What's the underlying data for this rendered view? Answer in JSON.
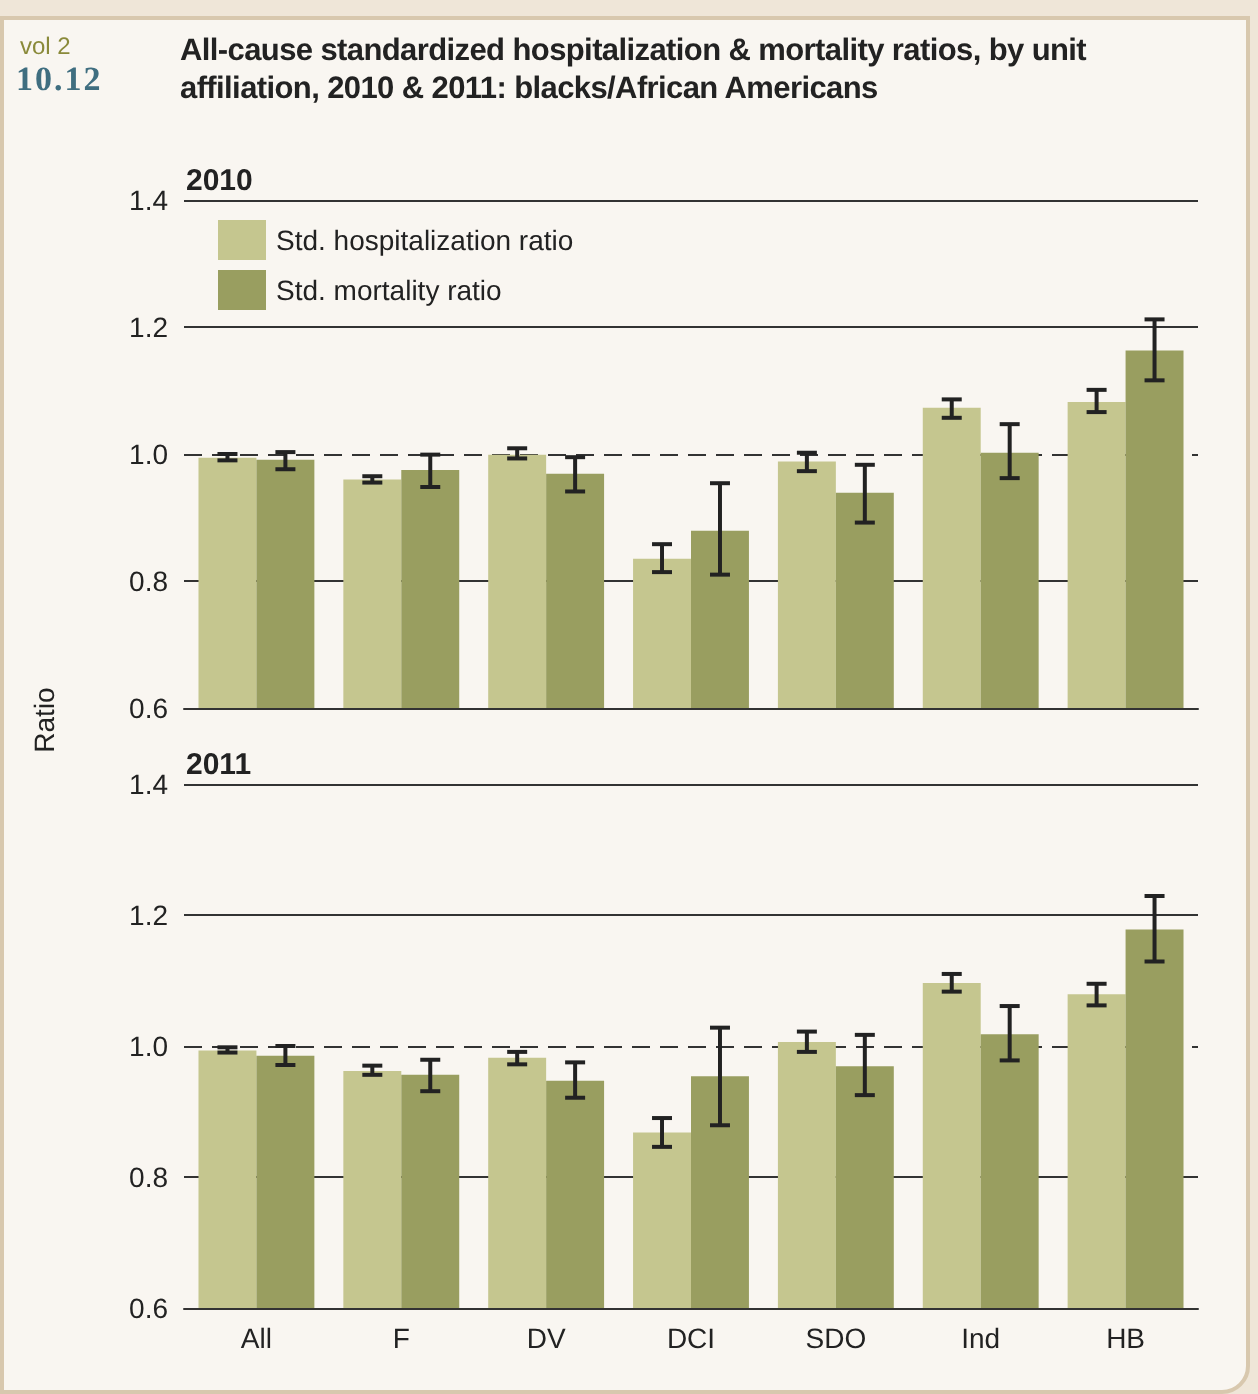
{
  "chart_data": [
    {
      "type": "bar",
      "title": "2010",
      "ylabel": "Ratio",
      "categories": [
        null,
        null,
        null,
        null,
        null,
        null,
        null
      ],
      "series": [
        {
          "name": "Std. hospitalization ratio",
          "color": "#c5c68f",
          "values": [
            0.994,
            0.96,
            0.999,
            0.835,
            0.988,
            1.073,
            1.082
          ],
          "errors": [
            [
              0.99,
              1.0
            ],
            [
              0.955,
              0.965
            ],
            [
              0.993,
              1.009
            ],
            [
              0.814,
              0.858
            ],
            [
              0.973,
              1.002
            ],
            [
              1.057,
              1.086
            ],
            [
              1.066,
              1.101
            ]
          ]
        },
        {
          "name": "Std. mortality ratio",
          "color": "#999e60",
          "values": [
            0.991,
            0.975,
            0.969,
            0.879,
            0.939,
            1.002,
            1.163
          ],
          "errors": [
            [
              0.976,
              1.003
            ],
            [
              0.948,
              0.999
            ],
            [
              0.941,
              0.995
            ],
            [
              0.81,
              0.954
            ],
            [
              0.892,
              0.983
            ],
            [
              0.962,
              1.047
            ],
            [
              1.116,
              1.212
            ]
          ]
        }
      ],
      "ylim": [
        0.6,
        1.4
      ],
      "yticks": [
        0.6,
        0.8,
        {
          "value": 1,
          "label": "1.0"
        },
        1.2,
        1.4
      ],
      "grid": "y",
      "legend": "top left",
      "tick_labels": "y",
      "ref_lines": [
        {
          "axis": "y",
          "value": 1.0,
          "line_style": "dashed"
        }
      ],
      "annotations": [
        "vol 2",
        "10.12",
        "All-cause standardized hospitalization & mortality ratios, by unit affiliation, 2010 & 2011: blacks/African Americans"
      ]
    },
    {
      "type": "bar",
      "title": "2011",
      "categories": [
        "All",
        "F",
        "DV",
        "DCI",
        "SDO",
        "Ind",
        "HB"
      ],
      "series": [
        {
          "color": "#c5c68f",
          "values": [
            0.993,
            0.962,
            0.982,
            0.868,
            1.006,
            1.096,
            1.079
          ],
          "errors": [
            [
              0.99,
              0.998
            ],
            [
              0.956,
              0.97
            ],
            [
              0.972,
              0.991
            ],
            [
              0.846,
              0.89
            ],
            [
              0.991,
              1.022
            ],
            [
              1.083,
              1.11
            ],
            [
              1.062,
              1.095
            ]
          ]
        },
        {
          "color": "#999e60",
          "values": [
            0.985,
            0.956,
            0.947,
            0.954,
            0.969,
            1.018,
            1.178
          ],
          "errors": [
            [
              0.971,
              1.0
            ],
            [
              0.931,
              0.979
            ],
            [
              0.921,
              0.975
            ],
            [
              0.879,
              1.028
            ],
            [
              0.925,
              1.017
            ],
            [
              0.978,
              1.061
            ],
            [
              1.129,
              1.229
            ]
          ]
        }
      ],
      "ylim": [
        0.6,
        1.4
      ],
      "yticks": [
        0.6,
        0.8,
        {
          "value": 1,
          "label": "1.0"
        },
        1.2,
        1.4
      ],
      "grid": "y",
      "legend": false,
      "ref_lines": [
        {
          "axis": "y",
          "value": 1.0,
          "line_style": "dashed"
        }
      ]
    }
  ]
}
